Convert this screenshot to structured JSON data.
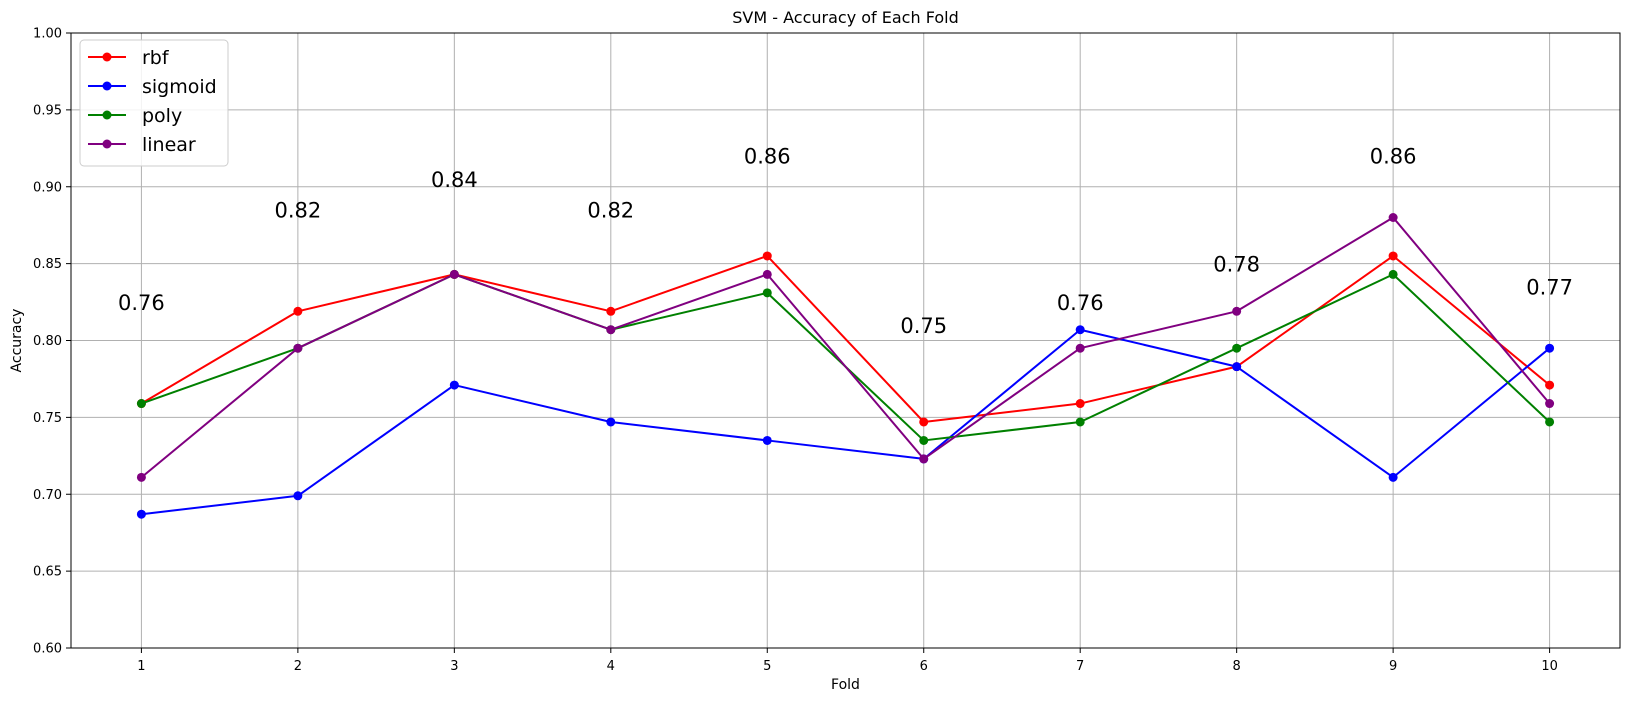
{
  "chart_data": {
    "type": "line",
    "title": "SVM - Accuracy of Each Fold",
    "xlabel": "Fold",
    "ylabel": "Accuracy",
    "x": [
      1,
      2,
      3,
      4,
      5,
      6,
      7,
      8,
      9,
      10
    ],
    "x_tick_labels": [
      "1",
      "2",
      "3",
      "4",
      "5",
      "6",
      "7",
      "8",
      "9",
      "10"
    ],
    "ylim": [
      0.6,
      1.0
    ],
    "y_ticks": [
      0.6,
      0.65,
      0.7,
      0.75,
      0.8,
      0.85,
      0.9,
      0.95,
      1.0
    ],
    "y_tick_labels": [
      "0.60",
      "0.65",
      "0.70",
      "0.75",
      "0.80",
      "0.85",
      "0.90",
      "0.95",
      "1.00"
    ],
    "grid": true,
    "legend_position": "top-left",
    "series": [
      {
        "name": "rbf",
        "color": "#ff0000",
        "values": [
          0.759,
          0.819,
          0.843,
          0.819,
          0.855,
          0.747,
          0.759,
          0.783,
          0.855,
          0.771
        ]
      },
      {
        "name": "sigmoid",
        "color": "#0000ff",
        "values": [
          0.687,
          0.699,
          0.771,
          0.747,
          0.735,
          0.723,
          0.807,
          0.783,
          0.711,
          0.795
        ]
      },
      {
        "name": "poly",
        "color": "#008000",
        "values": [
          0.759,
          0.795,
          0.843,
          0.807,
          0.831,
          0.735,
          0.747,
          0.795,
          0.843,
          0.747
        ]
      },
      {
        "name": "linear",
        "color": "#800080",
        "values": [
          0.711,
          0.795,
          0.843,
          0.807,
          0.843,
          0.723,
          0.795,
          0.819,
          0.88,
          0.759
        ]
      }
    ],
    "annotations": [
      {
        "x": 1,
        "y": 0.82,
        "text": "0.76"
      },
      {
        "x": 2,
        "y": 0.88,
        "text": "0.82"
      },
      {
        "x": 3,
        "y": 0.9,
        "text": "0.84"
      },
      {
        "x": 4,
        "y": 0.88,
        "text": "0.82"
      },
      {
        "x": 5,
        "y": 0.915,
        "text": "0.86"
      },
      {
        "x": 6,
        "y": 0.805,
        "text": "0.75"
      },
      {
        "x": 7,
        "y": 0.82,
        "text": "0.76"
      },
      {
        "x": 8,
        "y": 0.845,
        "text": "0.78"
      },
      {
        "x": 9,
        "y": 0.915,
        "text": "0.86"
      },
      {
        "x": 10,
        "y": 0.83,
        "text": "0.77"
      }
    ]
  }
}
